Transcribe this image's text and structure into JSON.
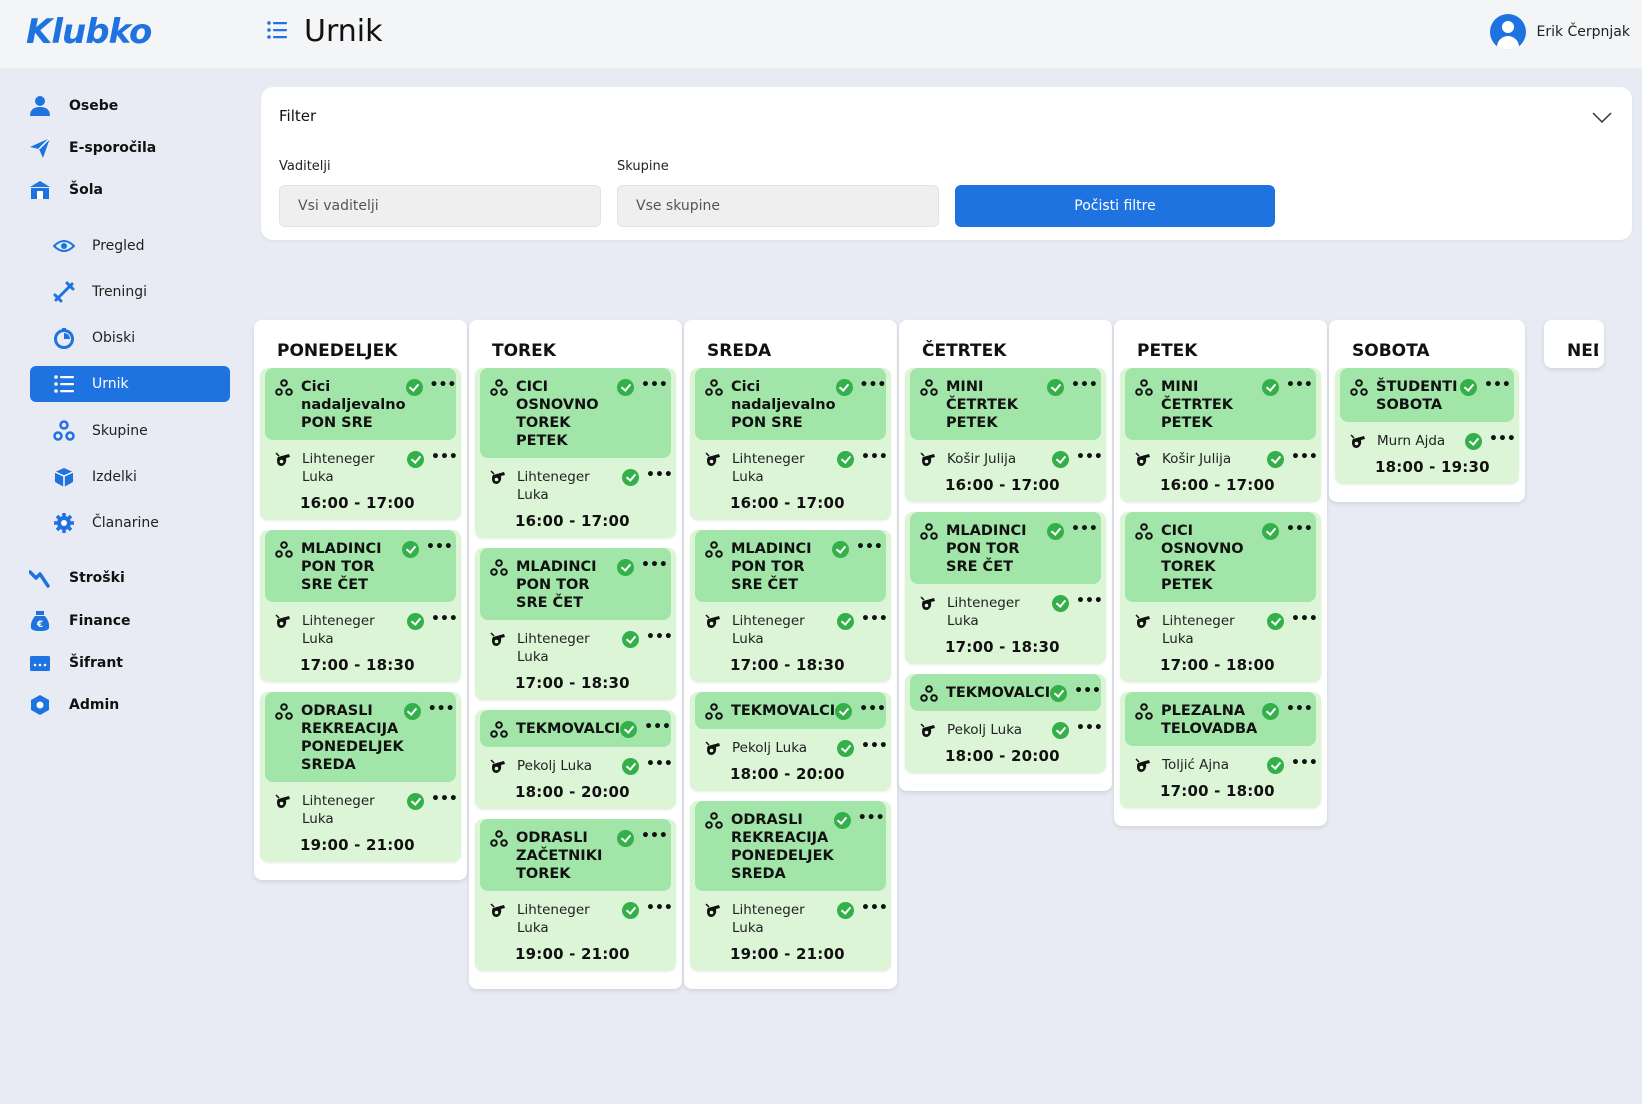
{
  "app": {
    "logo": "Klubko",
    "page_title": "Urnik",
    "user_name": "Erik Čerpnjak"
  },
  "sidebar": {
    "main_top": [
      {
        "label": "Osebe",
        "icon": "person-icon"
      },
      {
        "label": "E-sporočila",
        "icon": "send-icon"
      },
      {
        "label": "Šola",
        "icon": "school-icon"
      }
    ],
    "sub": [
      {
        "label": "Pregled",
        "icon": "eye-icon"
      },
      {
        "label": "Treningi",
        "icon": "training-icon"
      },
      {
        "label": "Obiski",
        "icon": "visits-icon"
      },
      {
        "label": "Urnik",
        "icon": "list-icon",
        "active": true
      },
      {
        "label": "Skupine",
        "icon": "groups-icon"
      },
      {
        "label": "Izdelki",
        "icon": "box-icon"
      },
      {
        "label": "Članarine",
        "icon": "gear-icon"
      }
    ],
    "main_bottom": [
      {
        "label": "Stroški",
        "icon": "chart-icon"
      },
      {
        "label": "Finance",
        "icon": "money-bag-icon"
      },
      {
        "label": "Šifrant",
        "icon": "code-icon"
      },
      {
        "label": "Admin",
        "icon": "hexagon-icon"
      }
    ],
    "accent": "#1f73e0"
  },
  "filter": {
    "title": "Filter",
    "coaches_label": "Vaditelji",
    "coaches_value": "Vsi vaditelji",
    "groups_label": "Skupine",
    "groups_value": "Vse skupine",
    "clear_button": "Počisti filtre"
  },
  "days": [
    {
      "name": "PONEDELJEK",
      "sessions": [
        {
          "group": "Cici nadaljevalno PON SRE",
          "coach": "Lihteneger Luka",
          "time": "16:00 - 17:00"
        },
        {
          "group": "MLADINCI PON TOR SRE ČET",
          "coach": "Lihteneger Luka",
          "time": "17:00 - 18:30"
        },
        {
          "group": "ODRASLI REKREACIJA PONEDELJEK SREDA",
          "coach": "Lihteneger Luka",
          "time": "19:00 - 21:00"
        }
      ]
    },
    {
      "name": "TOREK",
      "sessions": [
        {
          "group": "CICI OSNOVNO TOREK PETEK",
          "coach": "Lihteneger Luka",
          "time": "16:00 - 17:00"
        },
        {
          "group": "MLADINCI PON TOR SRE ČET",
          "coach": "Lihteneger Luka",
          "time": "17:00 - 18:30"
        },
        {
          "group": "TEKMOVALCI",
          "coach": "Pekolj Luka",
          "time": "18:00 - 20:00"
        },
        {
          "group": "ODRASLI ZAČETNIKI TOREK",
          "coach": "Lihteneger Luka",
          "time": "19:00 - 21:00"
        }
      ]
    },
    {
      "name": "SREDA",
      "sessions": [
        {
          "group": "Cici nadaljevalno PON SRE",
          "coach": "Lihteneger Luka",
          "time": "16:00 - 17:00"
        },
        {
          "group": "MLADINCI PON TOR SRE ČET",
          "coach": "Lihteneger Luka",
          "time": "17:00 - 18:30"
        },
        {
          "group": "TEKMOVALCI",
          "coach": "Pekolj Luka",
          "time": "18:00 - 20:00"
        },
        {
          "group": "ODRASLI REKREACIJA PONEDELJEK SREDA",
          "coach": "Lihteneger Luka",
          "time": "19:00 - 21:00"
        }
      ]
    },
    {
      "name": "ČETRTEK",
      "sessions": [
        {
          "group": "MINI ČETRTEK PETEK",
          "coach": "Košir Julija",
          "time": "16:00 - 17:00"
        },
        {
          "group": "MLADINCI PON TOR SRE ČET",
          "coach": "Lihteneger Luka",
          "time": "17:00 - 18:30"
        },
        {
          "group": "TEKMOVALCI",
          "coach": "Pekolj Luka",
          "time": "18:00 - 20:00"
        }
      ]
    },
    {
      "name": "PETEK",
      "sessions": [
        {
          "group": "MINI ČETRTEK PETEK",
          "coach": "Košir Julija",
          "time": "16:00 - 17:00"
        },
        {
          "group": "CICI OSNOVNO TOREK PETEK",
          "coach": "Lihteneger Luka",
          "time": "17:00 - 18:00"
        },
        {
          "group": "PLEZALNA TELOVADBA",
          "coach": "Toljić Ajna",
          "time": "17:00 - 18:00"
        }
      ]
    },
    {
      "name": "SOBOTA",
      "sessions": [
        {
          "group": "ŠTUDENTI SOBOTA",
          "coach": "Murn Ajda",
          "time": "18:00 - 19:30"
        }
      ]
    },
    {
      "name": "NEDELJA",
      "sessions": []
    }
  ],
  "colors": {
    "session_bg": "#dcf5d6",
    "session_head": "#a2e5a8",
    "check": "#34b04a"
  }
}
